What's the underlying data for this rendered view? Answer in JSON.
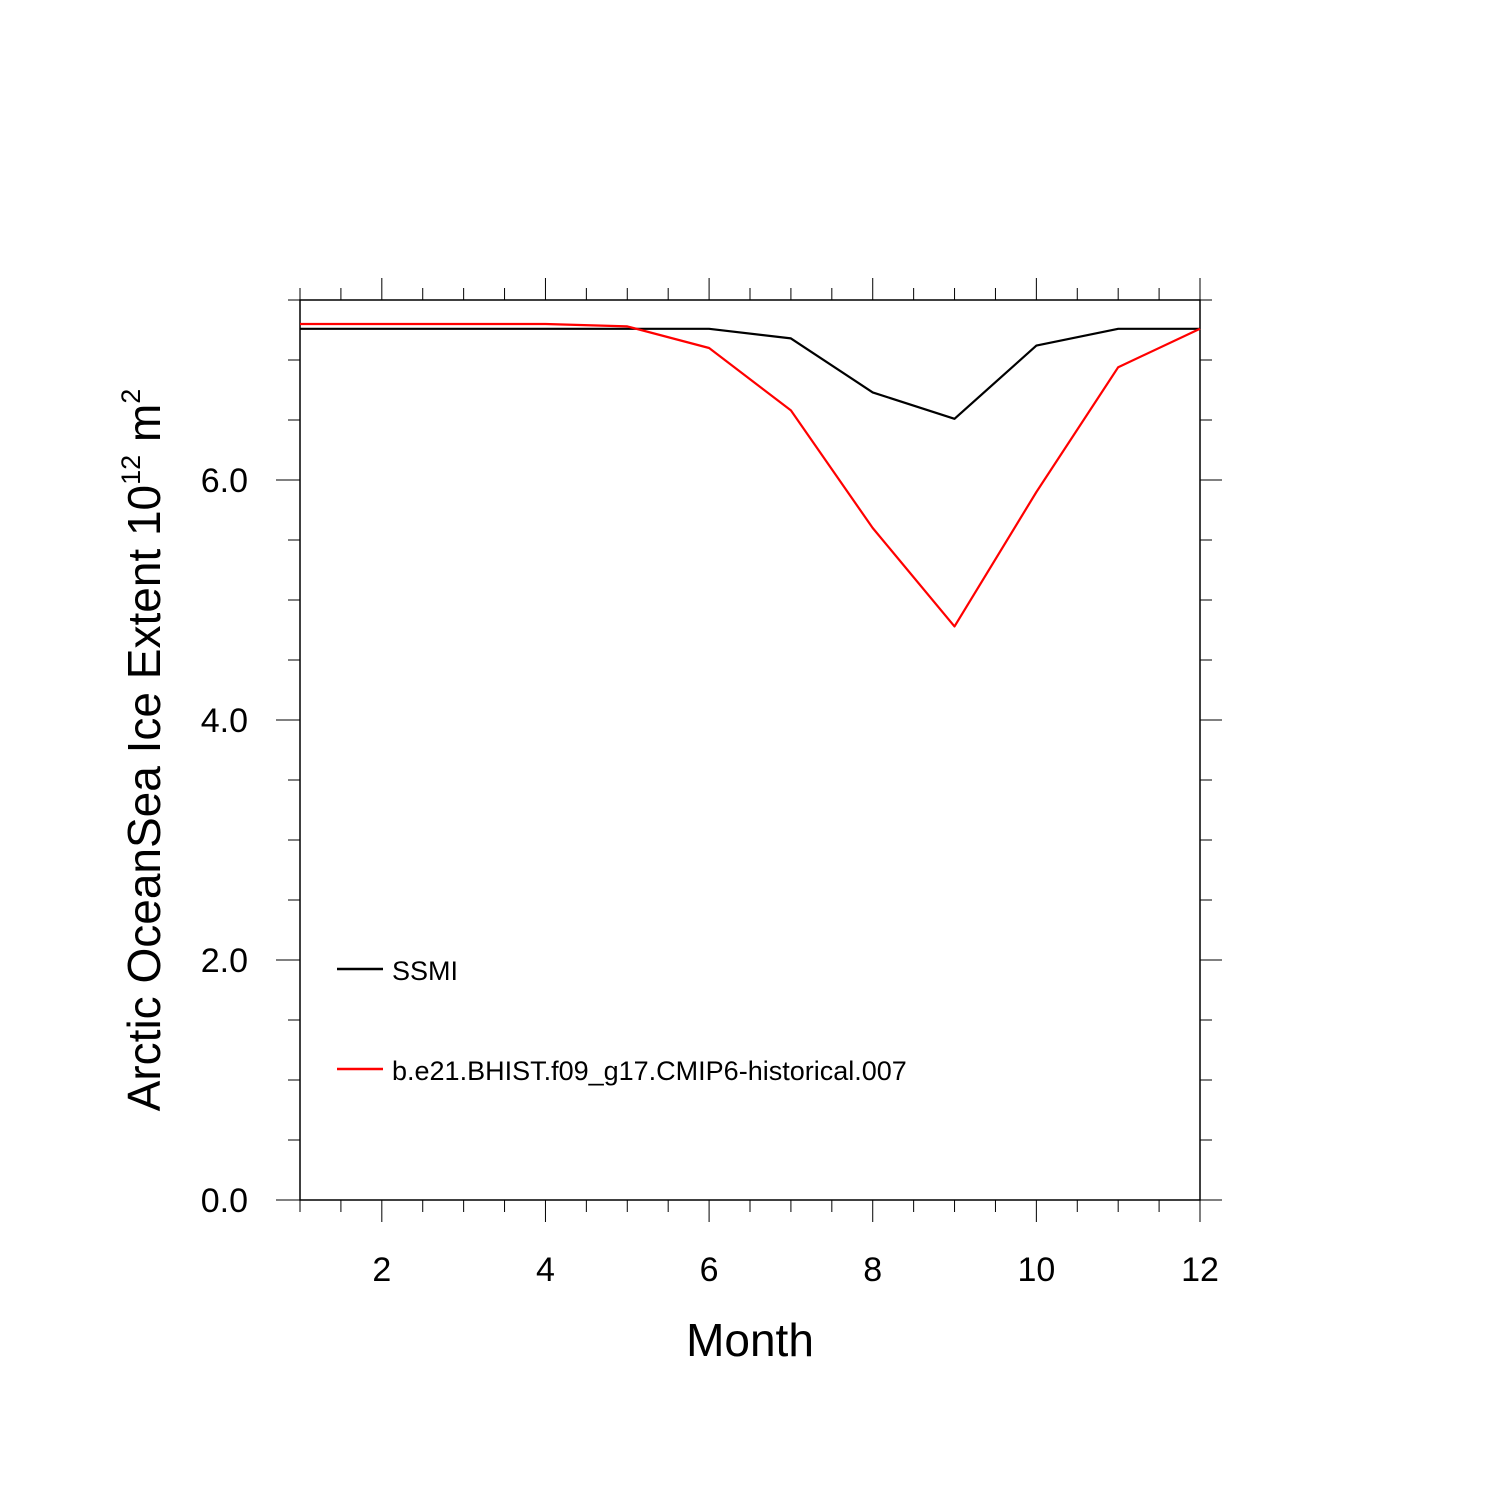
{
  "chart_data": {
    "type": "line",
    "title": "",
    "xlabel": "Month",
    "ylabel": "Arctic OceanSea Ice Extent 10",
    "ylabel_exponent": "12",
    "ylabel_unit": "m",
    "ylabel_unit_exponent": "2",
    "xlim": [
      1,
      12
    ],
    "ylim": [
      0,
      7.5
    ],
    "x_ticks": [
      2,
      4,
      6,
      8,
      10,
      12
    ],
    "x_tick_labels": [
      "2",
      "4",
      "6",
      "8",
      "10",
      "12"
    ],
    "y_ticks": [
      0,
      2,
      4,
      6
    ],
    "y_tick_labels": [
      "0.0",
      "2.0",
      "4.0",
      "6.0"
    ],
    "x_minor_step": 0.5,
    "y_minor_step": 0.5,
    "grid": false,
    "legend_position": "bottom-left",
    "x": [
      1,
      2,
      3,
      4,
      5,
      6,
      7,
      8,
      9,
      10,
      11,
      12
    ],
    "series": [
      {
        "name": "SSMI",
        "color": "#000000",
        "values": [
          7.26,
          7.26,
          7.26,
          7.26,
          7.26,
          7.26,
          7.18,
          6.73,
          6.51,
          7.12,
          7.26,
          7.26
        ]
      },
      {
        "name": "b.e21.BHIST.f09_g17.CMIP6-historical.007",
        "color": "#ff0000",
        "values": [
          7.3,
          7.3,
          7.3,
          7.3,
          7.28,
          7.1,
          6.58,
          5.6,
          4.78,
          5.9,
          6.94,
          7.26
        ]
      }
    ]
  }
}
